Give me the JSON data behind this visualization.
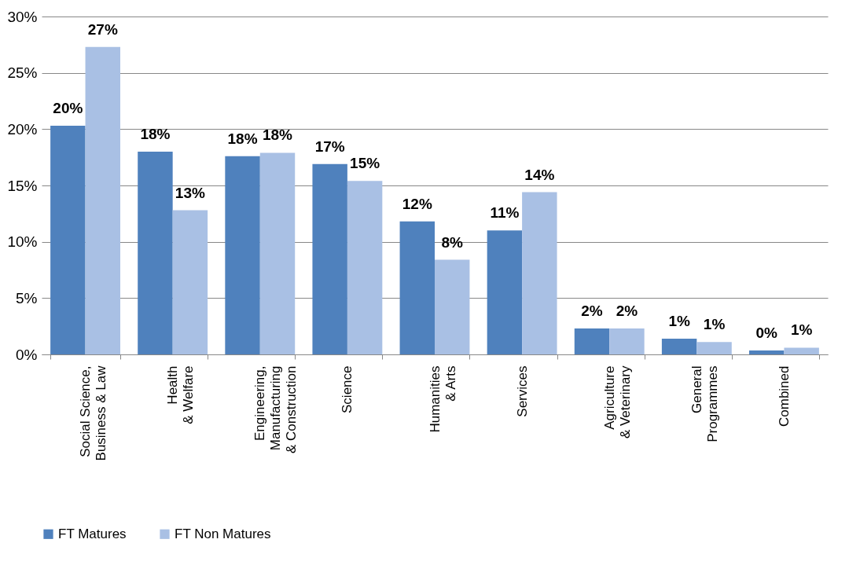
{
  "chart_data": {
    "type": "bar",
    "categories": [
      "Social Science,\nBusiness & Law",
      "Health\n& Welfare",
      "Engineering,\nManufacturing\n& Construction",
      "Science",
      "Humanities\n& Arts",
      "Services",
      "Agriculture\n& Veterinary",
      "General\nProgrammes",
      "Combined"
    ],
    "series": [
      {
        "name": "FT Matures",
        "color": "#4f81bd",
        "values": [
          20.3,
          18.0,
          17.6,
          16.9,
          11.8,
          11.0,
          2.3,
          1.4,
          0.35
        ],
        "value_labels": [
          "20%",
          "18%",
          "18%",
          "17%",
          "12%",
          "11%",
          "2%",
          "1%",
          "0%"
        ]
      },
      {
        "name": "FT Non Matures",
        "color": "#a9c0e4",
        "values": [
          27.3,
          12.8,
          17.9,
          15.4,
          8.4,
          14.4,
          2.3,
          1.1,
          0.6
        ],
        "value_labels": [
          "27%",
          "13%",
          "18%",
          "15%",
          "8%",
          "14%",
          "2%",
          "1%",
          "1%"
        ]
      }
    ],
    "ylim": [
      0,
      30
    ],
    "yticks": [
      {
        "value": 0,
        "label": "0%"
      },
      {
        "value": 5,
        "label": "5%"
      },
      {
        "value": 10,
        "label": "10%"
      },
      {
        "value": 15,
        "label": "15%"
      },
      {
        "value": 20,
        "label": "20%"
      },
      {
        "value": 25,
        "label": "25%"
      },
      {
        "value": 30,
        "label": "30%"
      }
    ],
    "grid": "y",
    "legend": "bottom"
  }
}
